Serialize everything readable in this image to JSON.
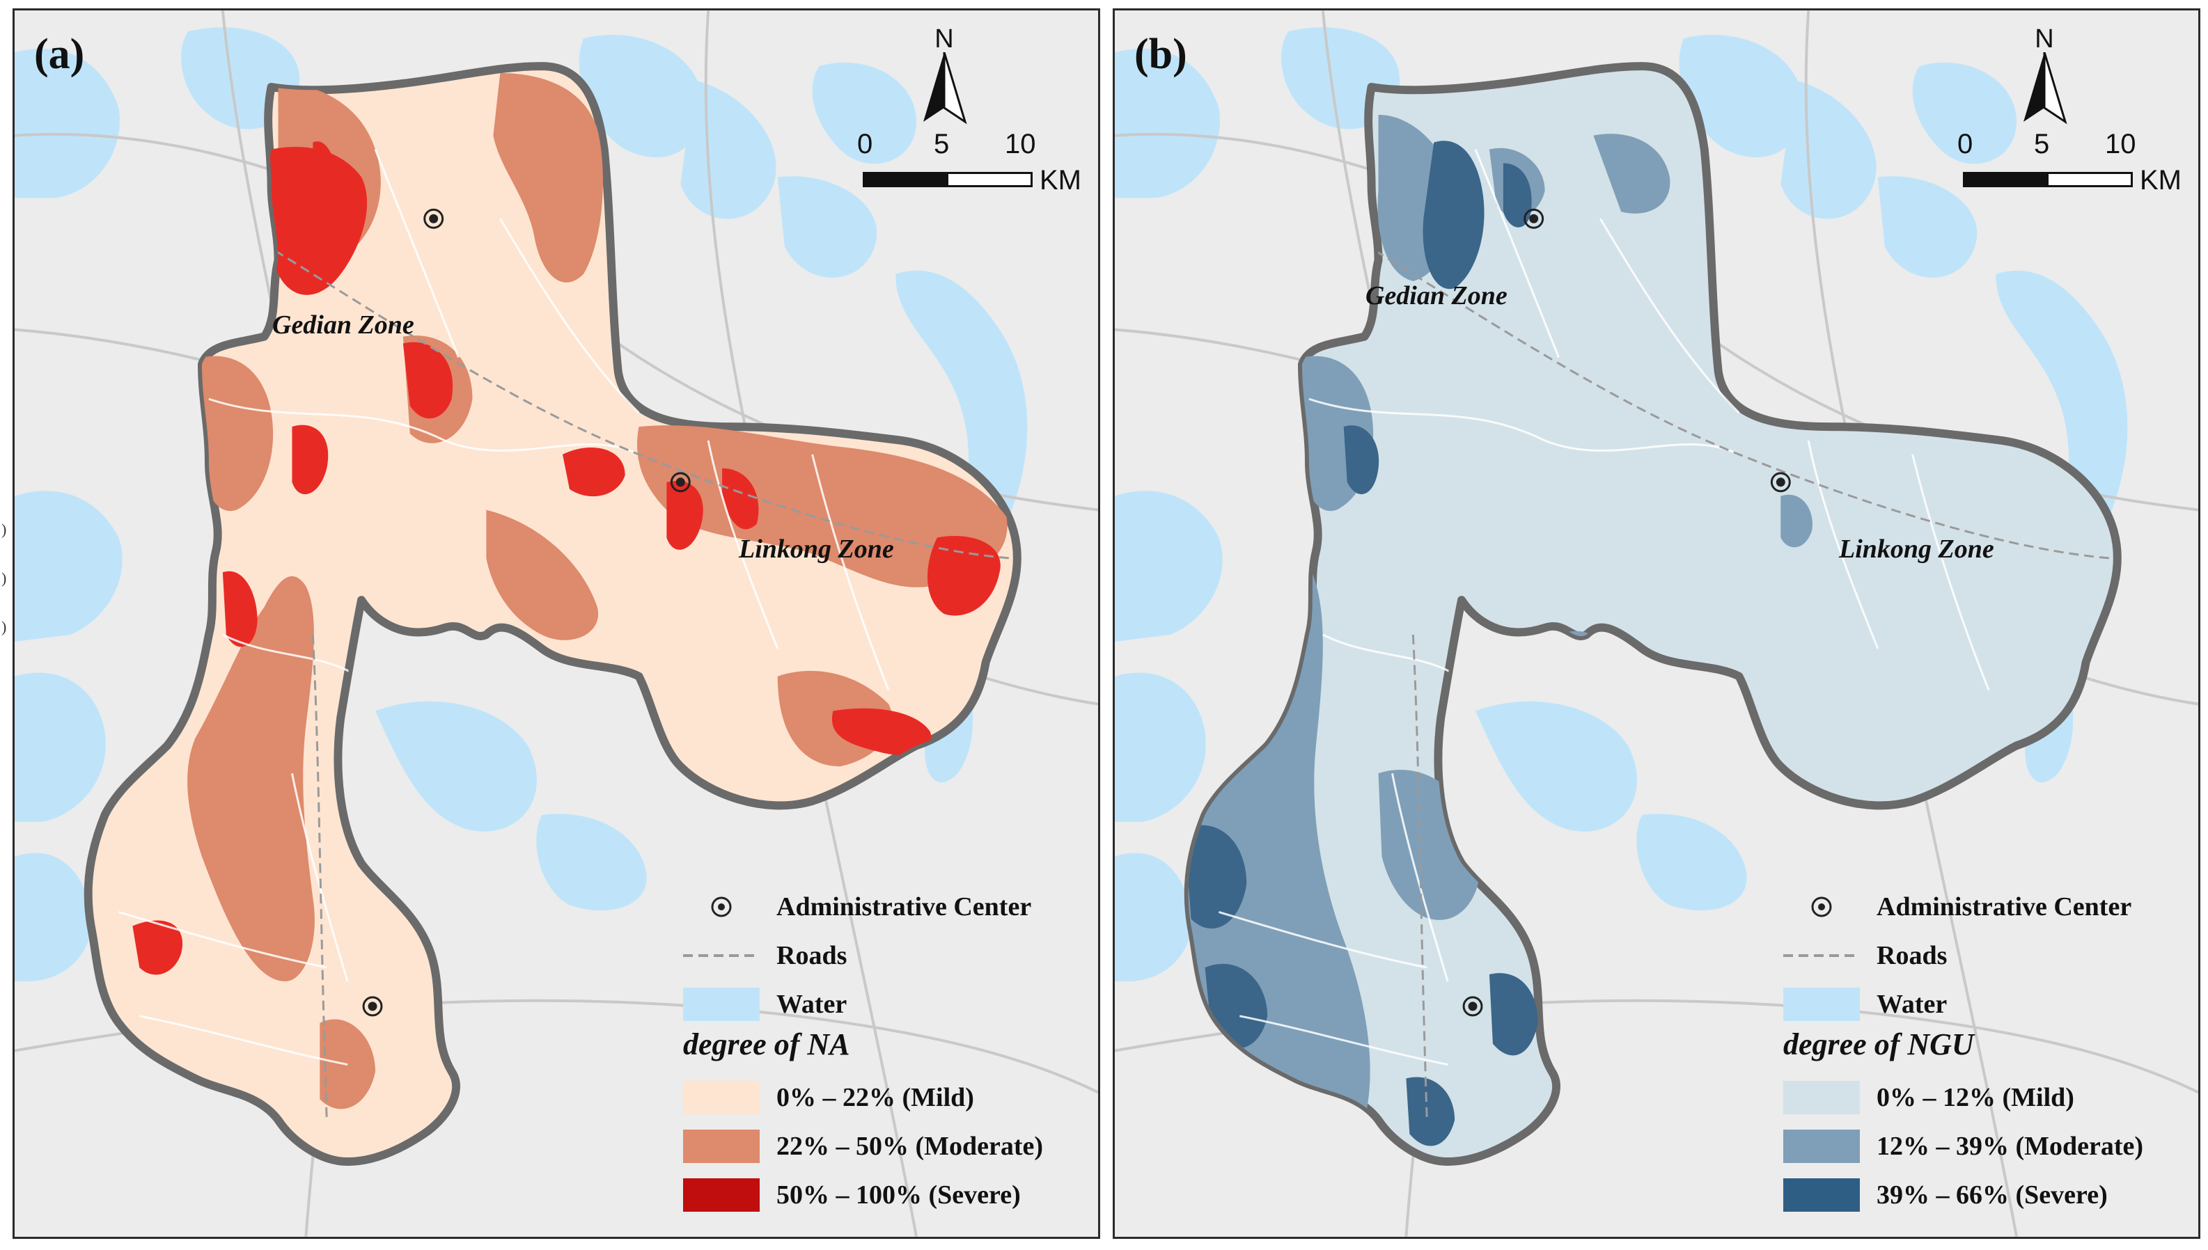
{
  "panels": [
    {
      "id": "a",
      "label": "(a)",
      "colors": {
        "mild": "#fde5d2",
        "moderate": "#de8a6c",
        "severe": "#e82a25",
        "outline": "#5f5f5f",
        "water": "#bfe4fa"
      },
      "zones": [
        "Gedian Zone",
        "Linkong Zone"
      ],
      "legend": {
        "admin_center": "Administrative Center",
        "roads": "Roads",
        "water": "Water",
        "title": "degree of NA",
        "classes": [
          {
            "label": "0% – 22% (Mild)",
            "color": "#fde5d2"
          },
          {
            "label": "22% – 50% (Moderate)",
            "color": "#de8a6c"
          },
          {
            "label": "50% – 100% (Severe)",
            "color": "#c00d0d"
          }
        ]
      }
    },
    {
      "id": "b",
      "label": "(b)",
      "colors": {
        "mild": "#d3e2e8",
        "moderate": "#7f9fb8",
        "severe": "#3b668a",
        "outline": "#5f5f5f",
        "water": "#bfe4fa"
      },
      "zones": [
        "Gedian Zone",
        "Linkong Zone"
      ],
      "legend": {
        "admin_center": "Administrative Center",
        "roads": "Roads",
        "water": "Water",
        "title": "degree of NGU",
        "classes": [
          {
            "label": "0% – 12% (Mild)",
            "color": "#d3e2e8"
          },
          {
            "label": "12% – 39% (Moderate)",
            "color": "#7f9fb8"
          },
          {
            "label": "39% – 66% (Severe)",
            "color": "#2f5e85"
          }
        ]
      }
    }
  ],
  "compass": {
    "letter": "N"
  },
  "scalebar": {
    "ticks": [
      "0",
      "5",
      "10"
    ],
    "unit": "KM"
  },
  "side_marks": [
    ")",
    ")",
    ")"
  ]
}
